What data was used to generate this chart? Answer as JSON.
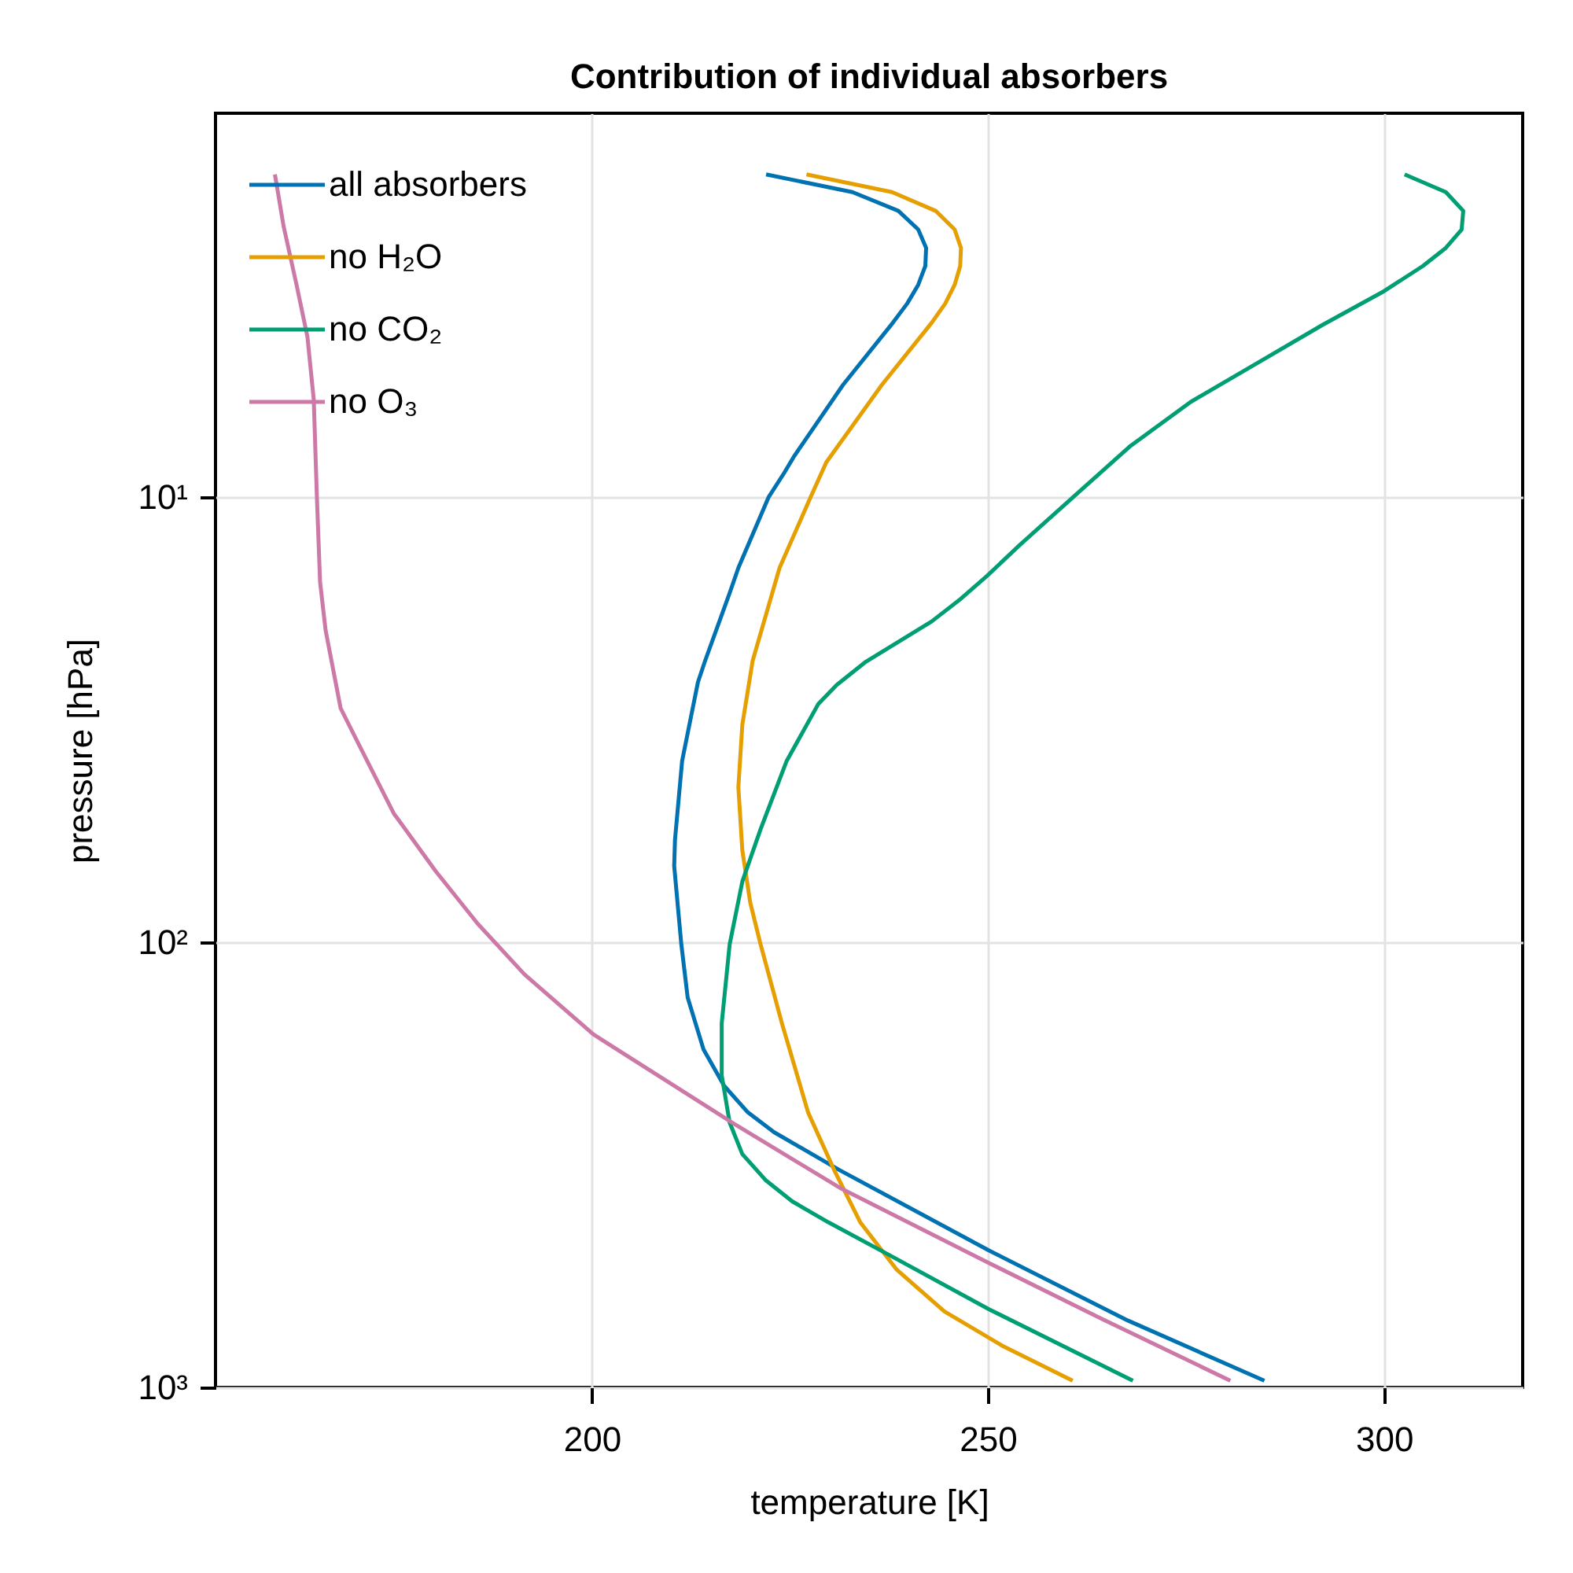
{
  "chart_data": {
    "type": "line",
    "title": "Contribution of individual absorbers",
    "xlabel": "temperature [K]",
    "ylabel": "pressure [hPa]",
    "xlim": [
      152.5,
      317.5
    ],
    "ylim": [
      1000,
      1.37
    ],
    "xticks": [
      200,
      250,
      300
    ],
    "yticks": [
      {
        "value": 10,
        "label": "10¹"
      },
      {
        "value": 100,
        "label": "10²"
      },
      {
        "value": 1000,
        "label": "10³"
      }
    ],
    "log": "y",
    "grid": true,
    "legend": "top left",
    "series": [
      {
        "name": "all absorbers",
        "color": "#0072b2",
        "x": [
          222.0,
          232.9,
          238.7,
          241.2,
          242.2,
          242.1,
          241.2,
          239.8,
          238.0,
          231.7,
          225.5,
          224.3,
          222.3,
          218.5,
          217.4,
          214.3,
          213.4,
          211.4,
          210.5,
          210.4,
          211.0,
          211.3,
          212.1,
          214.1,
          216.7,
          219.7,
          223.0,
          231.3,
          250.1,
          267.7,
          284.9
        ],
        "values": [
          1.88,
          2.06,
          2.27,
          2.5,
          2.75,
          3.02,
          3.33,
          3.67,
          4.05,
          5.59,
          8.1,
          8.8,
          10.0,
          14.4,
          16.4,
          23.3,
          26.0,
          39.1,
          58.8,
          67.3,
          88.3,
          101,
          133,
          174,
          210,
          241,
          267,
          325,
          492,
          708,
          966
        ]
      },
      {
        "name": "no H₂O",
        "color": "#e69f00",
        "x": [
          227.1,
          237.9,
          243.4,
          245.8,
          246.6,
          246.5,
          245.8,
          244.6,
          242.9,
          236.6,
          229.6,
          227.6,
          223.7,
          220.3,
          219.0,
          218.5,
          219.0,
          220.0,
          221.3,
          224.0,
          227.3,
          230.6,
          233.9,
          238.5,
          244.5,
          251.8,
          260.7
        ],
        "values": [
          1.88,
          2.06,
          2.27,
          2.5,
          2.75,
          3.02,
          3.33,
          3.67,
          4.05,
          5.59,
          8.34,
          10.0,
          14.4,
          23.3,
          32.4,
          44.8,
          62.1,
          81.4,
          101,
          152,
          241,
          325,
          426,
          544,
          675,
          806,
          966
        ]
      },
      {
        "name": "no CO₂",
        "color": "#009e73",
        "x": [
          302.6,
          307.8,
          310.0,
          309.8,
          307.8,
          304.9,
          300.0,
          292.3,
          284.0,
          275.6,
          268.0,
          261.0,
          254.0,
          249.9,
          246.4,
          242.9,
          234.6,
          230.9,
          228.6,
          224.6,
          221.3,
          219.0,
          217.4,
          216.4,
          216.4,
          217.4,
          219.0,
          222.0,
          225.3,
          229.9,
          237.9,
          250.1,
          268.3
        ],
        "values": [
          1.88,
          2.06,
          2.27,
          2.5,
          2.75,
          3.02,
          3.44,
          4.09,
          4.99,
          6.1,
          7.66,
          9.9,
          12.8,
          15.0,
          17.0,
          19.0,
          23.4,
          26.4,
          29.1,
          39.1,
          55.7,
          73.0,
          101,
          152,
          199,
          254,
          299,
          343,
          382,
          426,
          508,
          667,
          966
        ]
      },
      {
        "name": "no O₃",
        "color": "#cc79a7",
        "x": [
          160.0,
          161.1,
          162.7,
          164.1,
          164.9,
          165.3,
          165.7,
          166.4,
          168.3,
          171.0,
          175.0,
          180.3,
          185.6,
          191.5,
          200.2,
          218.0,
          231.3,
          249.8,
          264.4,
          280.6
        ],
        "values": [
          1.88,
          2.46,
          3.31,
          4.35,
          6.02,
          10.0,
          15.5,
          19.9,
          29.8,
          37.1,
          51.3,
          69.2,
          90.8,
          118,
          161,
          256,
          356,
          522,
          702,
          966
        ]
      }
    ]
  }
}
